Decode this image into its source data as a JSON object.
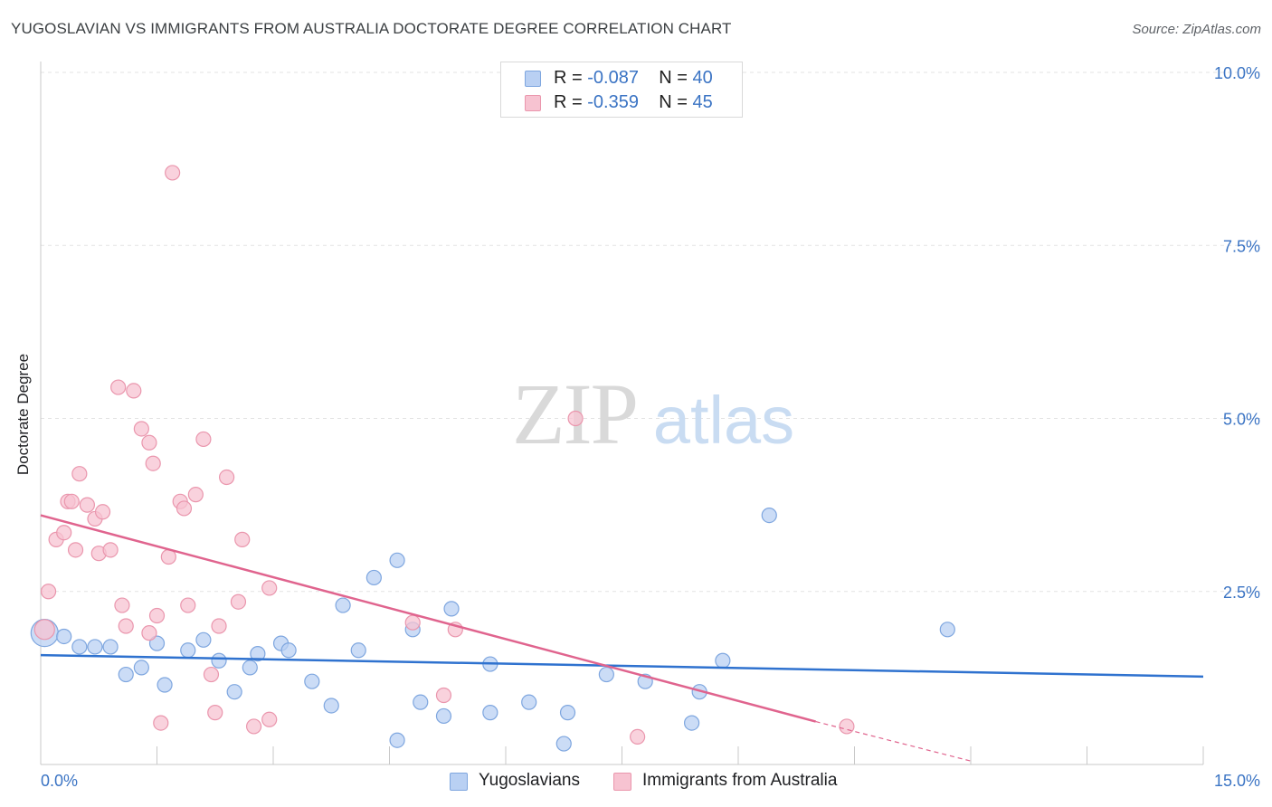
{
  "header": {
    "title": "YUGOSLAVIAN VS IMMIGRANTS FROM AUSTRALIA DOCTORATE DEGREE CORRELATION CHART",
    "source": "Source: ZipAtlas.com"
  },
  "watermark": {
    "zip": "ZIP",
    "atlas": "atlas"
  },
  "stats_legend": {
    "rows": [
      {
        "r_label": "R = ",
        "r_value": "-0.087",
        "n_label": "N = ",
        "n_value": "40"
      },
      {
        "r_label": "R = ",
        "r_value": "-0.359",
        "n_label": "N = ",
        "n_value": "45"
      }
    ]
  },
  "colors": {
    "blue_fill": "#b9d0f3",
    "blue_stroke": "#7ea6df",
    "blue_line": "#2f72cf",
    "pink_fill": "#f7c3d1",
    "pink_stroke": "#ea96ad",
    "pink_line": "#e0648e",
    "tick_label": "#3b74c4",
    "grid": "#e3e3e3"
  },
  "chart_data": {
    "type": "scatter",
    "title": "YUGOSLAVIAN VS IMMIGRANTS FROM AUSTRALIA DOCTORATE DEGREE CORRELATION CHART",
    "xlabel": "",
    "ylabel": "Doctorate Degree",
    "xlim": [
      0,
      15
    ],
    "ylim": [
      0,
      10
    ],
    "x_tick_labels": [
      "0.0%",
      "15.0%"
    ],
    "y_ticks": [
      2.5,
      5.0,
      7.5,
      10.0
    ],
    "y_tick_labels": [
      "2.5%",
      "5.0%",
      "7.5%",
      "10.0%"
    ],
    "grid": true,
    "legend_position": "bottom-center",
    "series": [
      {
        "name": "Yugoslavians",
        "color": "#b9d0f3",
        "points": [
          [
            0.05,
            1.9
          ],
          [
            0.3,
            1.85
          ],
          [
            0.5,
            1.7
          ],
          [
            0.7,
            1.7
          ],
          [
            0.9,
            1.7
          ],
          [
            1.1,
            1.3
          ],
          [
            1.3,
            1.4
          ],
          [
            1.5,
            1.75
          ],
          [
            1.6,
            1.15
          ],
          [
            1.9,
            1.65
          ],
          [
            2.1,
            1.8
          ],
          [
            2.3,
            1.5
          ],
          [
            2.5,
            1.05
          ],
          [
            2.7,
            1.4
          ],
          [
            2.8,
            1.6
          ],
          [
            3.1,
            1.75
          ],
          [
            3.2,
            1.65
          ],
          [
            3.5,
            1.2
          ],
          [
            3.75,
            0.85
          ],
          [
            3.9,
            2.3
          ],
          [
            4.1,
            1.65
          ],
          [
            4.3,
            2.7
          ],
          [
            4.6,
            2.95
          ],
          [
            4.6,
            0.35
          ],
          [
            4.8,
            1.95
          ],
          [
            4.9,
            0.9
          ],
          [
            5.2,
            0.7
          ],
          [
            5.3,
            2.25
          ],
          [
            5.8,
            0.75
          ],
          [
            5.8,
            1.45
          ],
          [
            6.3,
            0.9
          ],
          [
            6.75,
            0.3
          ],
          [
            6.8,
            0.75
          ],
          [
            7.3,
            1.3
          ],
          [
            7.8,
            1.2
          ],
          [
            8.4,
            0.6
          ],
          [
            8.5,
            1.05
          ],
          [
            8.8,
            1.5
          ],
          [
            9.4,
            3.6
          ],
          [
            11.7,
            1.95
          ]
        ],
        "trend": {
          "x": [
            0,
            15
          ],
          "y": [
            1.58,
            1.27
          ]
        }
      },
      {
        "name": "Immigrants from Australia",
        "color": "#f7c3d1",
        "points": [
          [
            0.05,
            1.95
          ],
          [
            0.1,
            2.5
          ],
          [
            0.2,
            3.25
          ],
          [
            0.3,
            3.35
          ],
          [
            0.35,
            3.8
          ],
          [
            0.4,
            3.8
          ],
          [
            0.45,
            3.1
          ],
          [
            0.5,
            4.2
          ],
          [
            0.6,
            3.75
          ],
          [
            0.7,
            3.55
          ],
          [
            0.75,
            3.05
          ],
          [
            0.8,
            3.65
          ],
          [
            0.9,
            3.1
          ],
          [
            1.0,
            5.45
          ],
          [
            1.05,
            2.3
          ],
          [
            1.1,
            2.0
          ],
          [
            1.2,
            5.4
          ],
          [
            1.3,
            4.85
          ],
          [
            1.4,
            4.65
          ],
          [
            1.4,
            1.9
          ],
          [
            1.45,
            4.35
          ],
          [
            1.5,
            2.15
          ],
          [
            1.55,
            0.6
          ],
          [
            1.65,
            3.0
          ],
          [
            1.7,
            8.55
          ],
          [
            1.8,
            3.8
          ],
          [
            1.85,
            3.7
          ],
          [
            1.9,
            2.3
          ],
          [
            2.0,
            3.9
          ],
          [
            2.1,
            4.7
          ],
          [
            2.2,
            1.3
          ],
          [
            2.25,
            0.75
          ],
          [
            2.3,
            2.0
          ],
          [
            2.4,
            4.15
          ],
          [
            2.55,
            2.35
          ],
          [
            2.6,
            3.25
          ],
          [
            2.75,
            0.55
          ],
          [
            2.95,
            0.65
          ],
          [
            2.95,
            2.55
          ],
          [
            4.8,
            2.05
          ],
          [
            5.2,
            1.0
          ],
          [
            5.35,
            1.95
          ],
          [
            6.9,
            5.0
          ],
          [
            7.7,
            0.4
          ],
          [
            10.4,
            0.55
          ]
        ],
        "trend": {
          "x": [
            0,
            10.0
          ],
          "y": [
            3.6,
            0.62
          ]
        },
        "trend_extension": {
          "x": [
            10.0,
            12.0
          ],
          "y": [
            0.62,
            0.05
          ]
        }
      }
    ]
  }
}
